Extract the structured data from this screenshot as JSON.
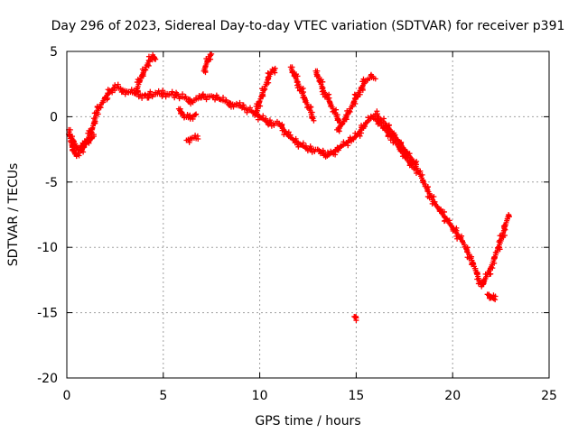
{
  "chart_data": {
    "type": "scatter",
    "title": "Day 296 of 2023, Sidereal Day-to-day VTEC variation (SDTVAR) for receiver p391",
    "xlabel": "GPS time / hours",
    "ylabel": "SDTVAR / TECUs",
    "xlim": [
      0,
      25
    ],
    "ylim": [
      -20,
      5
    ],
    "xticks": [
      0,
      5,
      10,
      15,
      20,
      25
    ],
    "xtick_labels": [
      "0",
      "5",
      "10",
      "15",
      "20",
      "25"
    ],
    "yticks": [
      -20,
      -15,
      -10,
      -5,
      0,
      5
    ],
    "ytick_labels": [
      "-20",
      "-15",
      "-10",
      "-5",
      "0",
      "5"
    ],
    "grid": true,
    "marker": "+",
    "series_color": "#ff0000",
    "series": [
      {
        "name": "main-track",
        "x": [
          0.1,
          0.3,
          0.5,
          0.8,
          1.0,
          1.3,
          1.6,
          2.0,
          2.5,
          3.0,
          3.5,
          4.0,
          4.5,
          5.0,
          5.5,
          6.0,
          6.5,
          7.0,
          7.5,
          8.0,
          8.5,
          9.0,
          9.5,
          10.0,
          10.5,
          11.0,
          11.5,
          12.0,
          12.5,
          13.0,
          13.5,
          14.0,
          14.5,
          15.0,
          15.5,
          16.0,
          16.5,
          17.0,
          17.5,
          18.0,
          18.5,
          19.0,
          19.5,
          20.0,
          20.5,
          21.0,
          21.5,
          22.0,
          22.5,
          22.9
        ],
        "y": [
          -1.0,
          -2.5,
          -3.0,
          -2.5,
          -2.0,
          -1.0,
          0.5,
          1.5,
          2.3,
          2.0,
          1.8,
          1.6,
          1.7,
          1.8,
          1.7,
          1.5,
          1.2,
          1.5,
          1.6,
          1.3,
          1.0,
          0.8,
          0.5,
          0.0,
          -0.5,
          -0.5,
          -1.5,
          -2.0,
          -2.5,
          -2.5,
          -3.0,
          -2.5,
          -2.0,
          -1.5,
          -0.5,
          0.2,
          -0.5,
          -1.5,
          -2.5,
          -3.5,
          -5.0,
          -6.5,
          -7.5,
          -8.5,
          -9.5,
          -11.0,
          -13.0,
          -11.5,
          -9.5,
          -7.5
        ]
      },
      {
        "name": "early-lower",
        "x": [
          0.2,
          0.6,
          1.0,
          1.4
        ],
        "y": [
          -1.5,
          -2.5,
          -2.0,
          -1.5
        ]
      },
      {
        "name": "rise-4.5",
        "x": [
          3.6,
          3.8,
          4.0,
          4.2,
          4.4,
          4.5,
          4.6
        ],
        "y": [
          2.0,
          2.8,
          3.5,
          4.1,
          4.5,
          4.6,
          4.4
        ]
      },
      {
        "name": "rise-7.5",
        "x": [
          7.1,
          7.2,
          7.3,
          7.4,
          7.5
        ],
        "y": [
          3.5,
          3.9,
          4.3,
          4.6,
          4.8
        ]
      },
      {
        "name": "patch-6.5",
        "x": [
          6.2,
          6.5,
          6.8
        ],
        "y": [
          -1.8,
          -1.6,
          -1.7
        ]
      },
      {
        "name": "patch-6.3",
        "x": [
          5.8,
          6.1,
          6.4,
          6.7
        ],
        "y": [
          0.6,
          0.0,
          -0.1,
          0.2
        ]
      },
      {
        "name": "rise-10.5",
        "x": [
          9.8,
          10.0,
          10.2,
          10.4,
          10.6,
          10.8
        ],
        "y": [
          0.2,
          1.2,
          2.0,
          2.8,
          3.4,
          3.7
        ]
      },
      {
        "name": "arc-11.5-12.5",
        "x": [
          11.6,
          11.8,
          12.0,
          12.3,
          12.6,
          12.8
        ],
        "y": [
          3.8,
          3.2,
          2.5,
          1.5,
          0.5,
          -0.3
        ]
      },
      {
        "name": "arc-13-14",
        "x": [
          12.9,
          13.1,
          13.3,
          13.6,
          13.9,
          14.2
        ],
        "y": [
          3.5,
          2.8,
          2.0,
          1.2,
          0.3,
          -0.6
        ]
      },
      {
        "name": "arc-14-15.5",
        "x": [
          14.0,
          14.3,
          14.6,
          14.9,
          15.2,
          15.5,
          15.8,
          16.0
        ],
        "y": [
          -1.0,
          -0.5,
          0.3,
          1.2,
          2.0,
          2.8,
          3.0,
          2.9
        ]
      },
      {
        "name": "branch-16-18",
        "x": [
          16.0,
          16.4,
          16.8,
          17.2,
          17.6,
          18.0
        ],
        "y": [
          -0.2,
          -0.8,
          -1.5,
          -2.3,
          -3.2,
          -4.0
        ]
      },
      {
        "name": "tail-22.5-23",
        "x": [
          21.8,
          22.0,
          22.2
        ],
        "y": [
          -13.6,
          -13.8,
          -14.0
        ]
      },
      {
        "name": "outlier",
        "x": [
          14.9,
          15.0
        ],
        "y": [
          -15.3,
          -15.4
        ]
      }
    ]
  }
}
